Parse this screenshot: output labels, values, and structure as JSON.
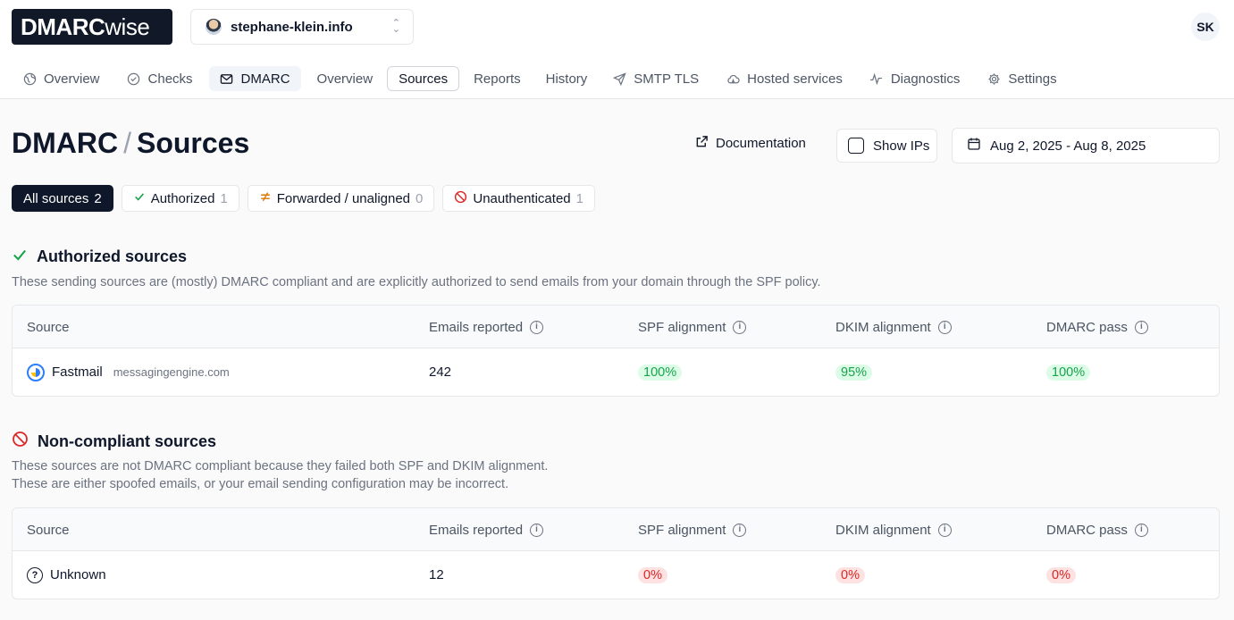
{
  "brand": {
    "logo_bold": "DMARC",
    "logo_light": "wise"
  },
  "domain_selector": {
    "value": "stephane-klein.info"
  },
  "user": {
    "initials": "SK"
  },
  "nav": {
    "overview": "Overview",
    "checks": "Checks",
    "dmarc": "DMARC",
    "dmarc_sub": [
      "Overview",
      "Sources",
      "Reports",
      "History"
    ],
    "smtp_tls": "SMTP TLS",
    "hosted_services": "Hosted services",
    "diagnostics": "Diagnostics",
    "settings": "Settings"
  },
  "page": {
    "title_parent": "DMARC",
    "title_sep": "/",
    "title": "Sources"
  },
  "actions": {
    "documentation": "Documentation",
    "show_ips": "Show IPs",
    "date_range": "Aug 2, 2025 - Aug 8, 2025"
  },
  "filters": [
    {
      "label": "All sources",
      "count": "2"
    },
    {
      "label": "Authorized",
      "count": "1"
    },
    {
      "label": "Forwarded / unaligned",
      "count": "0"
    },
    {
      "label": "Unauthenticated",
      "count": "1"
    }
  ],
  "columns": {
    "source": "Source",
    "emails": "Emails reported",
    "spf": "SPF alignment",
    "dkim": "DKIM alignment",
    "dmarc": "DMARC pass"
  },
  "authorized": {
    "title": "Authorized sources",
    "description": "These sending sources are (mostly) DMARC compliant and are explicitly authorized to send emails from your domain through the SPF policy.",
    "rows": [
      {
        "name": "Fastmail",
        "host": "messagingengine.com",
        "emails": "242",
        "spf": "100%",
        "dkim": "95%",
        "dmarc": "100%"
      }
    ]
  },
  "noncompliant": {
    "title": "Non-compliant sources",
    "description_1": "These sources are not DMARC compliant because they failed both SPF and DKIM alignment.",
    "description_2": "These are either spoofed emails, or your email sending configuration may be incorrect.",
    "rows": [
      {
        "name": "Unknown",
        "emails": "12",
        "spf": "0%",
        "dkim": "0%",
        "dmarc": "0%"
      }
    ]
  },
  "colors": {
    "accent_dark": "#0f172a",
    "success": "#16a34a",
    "danger": "#dc2626"
  }
}
